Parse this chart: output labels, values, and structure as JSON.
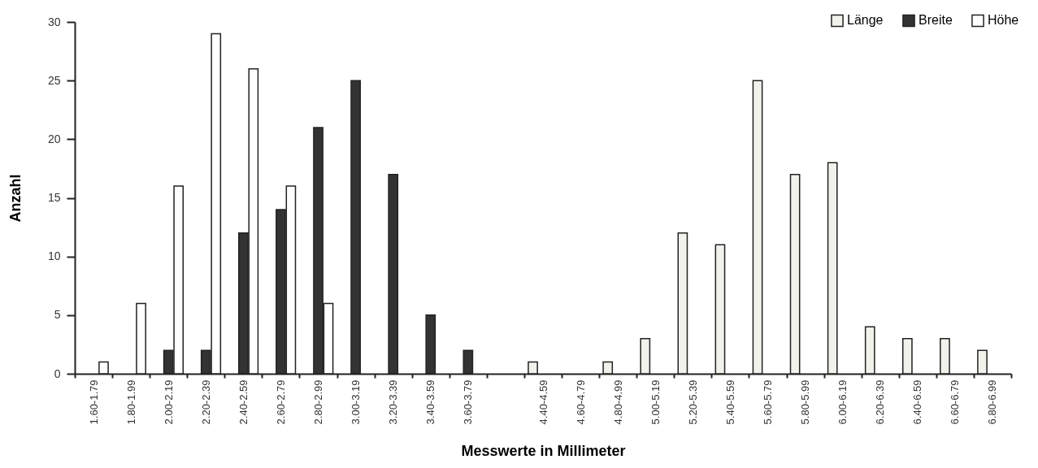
{
  "chart_data": {
    "type": "bar",
    "xlabel": "Messwerte in Millimeter",
    "ylabel": "Anzahl",
    "categories": [
      "1.60-1.79",
      "1.80-1.99",
      "2.00-2.19",
      "2.20-2.39",
      "2.40-2.59",
      "2.60-2.79",
      "2.80-2.99",
      "3.00-3.19",
      "3.20-3.39",
      "3.40-3.59",
      "3.60-3.79",
      null,
      "4.40-4.59",
      "4.60-4.79",
      "4.80-4.99",
      "5.00-5.19",
      "5.20-5.39",
      "5.40-5.59",
      "5.60-5.79",
      "5.80-5.99",
      "6.00-6.19",
      "6.20-6.39",
      "6.40-6.59",
      "6.60-6.79",
      "6.80-6.99"
    ],
    "series": [
      {
        "name": "Länge",
        "color": "#f2f2ec",
        "values": [
          null,
          null,
          null,
          null,
          null,
          null,
          null,
          null,
          null,
          null,
          null,
          null,
          1,
          null,
          1,
          3,
          12,
          11,
          25,
          17,
          18,
          4,
          3,
          3,
          2
        ]
      },
      {
        "name": "Breite",
        "color": "#333333",
        "values": [
          null,
          null,
          2,
          2,
          12,
          14,
          21,
          25,
          17,
          5,
          2,
          null,
          null,
          null,
          null,
          null,
          null,
          null,
          null,
          null,
          null,
          null,
          null,
          null,
          null
        ]
      },
      {
        "name": "Höhe",
        "color": "#ffffff",
        "values": [
          1,
          6,
          16,
          29,
          26,
          16,
          6,
          null,
          null,
          null,
          null,
          null,
          null,
          null,
          null,
          null,
          null,
          null,
          null,
          null,
          null,
          null,
          null,
          null,
          null
        ]
      }
    ],
    "ylim": [
      0,
      30
    ],
    "yticks": [
      0,
      5,
      10,
      15,
      20,
      25,
      30
    ],
    "grid": false,
    "legend": "top right"
  }
}
